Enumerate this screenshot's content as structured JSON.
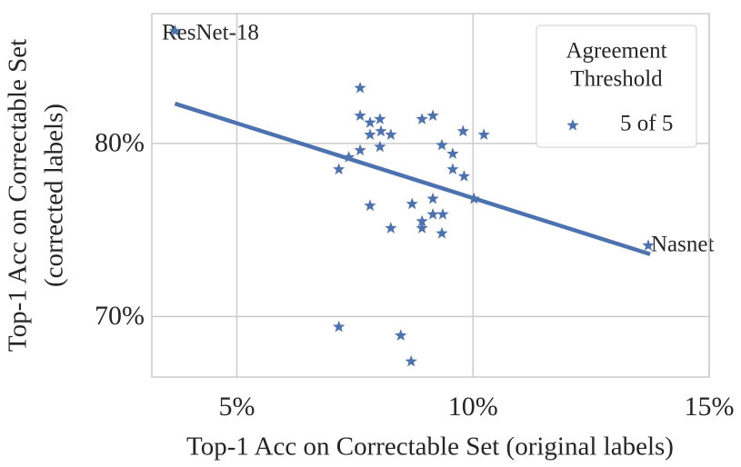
{
  "chart_data": {
    "type": "scatter",
    "xlabel": "Top-1 Acc on Correctable Set (original labels)",
    "ylabel": [
      "Top-1 Acc on Correctable Set",
      "(corrected labels)"
    ],
    "xlim": [
      3.2,
      15
    ],
    "ylim": [
      66.5,
      87.5
    ],
    "xticks": [
      {
        "value": 5,
        "label": "5%"
      },
      {
        "value": 10,
        "label": "10%"
      },
      {
        "value": 15,
        "label": "15%"
      }
    ],
    "yticks": [
      {
        "value": 70,
        "label": "70%"
      },
      {
        "value": 80,
        "label": "80%"
      }
    ],
    "grid": true,
    "legend_title": [
      "Agreement",
      "Threshold"
    ],
    "legend_position": "upper right",
    "series": [
      {
        "name": "5 of 5",
        "color": "#4c72b0",
        "x": [
          3.69,
          7.61,
          7.61,
          7.82,
          8.03,
          7.82,
          8.05,
          8.26,
          8.03,
          7.61,
          7.37,
          7.16,
          8.92,
          9.15,
          9.79,
          10.23,
          9.34,
          9.57,
          9.57,
          9.81,
          10.02,
          9.15,
          8.71,
          7.82,
          9.15,
          9.36,
          8.92,
          8.92,
          8.26,
          9.34,
          13.71,
          7.16,
          8.47,
          8.69
        ],
        "y": [
          86.5,
          83.2,
          81.6,
          81.2,
          81.4,
          80.5,
          80.7,
          80.5,
          79.8,
          79.6,
          79.2,
          78.5,
          81.4,
          81.6,
          80.7,
          80.5,
          79.9,
          79.4,
          78.5,
          78.1,
          76.8,
          76.8,
          76.5,
          76.4,
          75.9,
          75.9,
          75.5,
          75.1,
          75.1,
          74.8,
          74.1,
          69.4,
          68.9,
          67.4
        ]
      }
    ],
    "fit_line": {
      "color": "#4c72b0",
      "x": [
        3.69,
        13.75
      ],
      "y": [
        82.3,
        73.6
      ]
    },
    "annotations": [
      "ResNet-18",
      "Nasnet"
    ]
  }
}
